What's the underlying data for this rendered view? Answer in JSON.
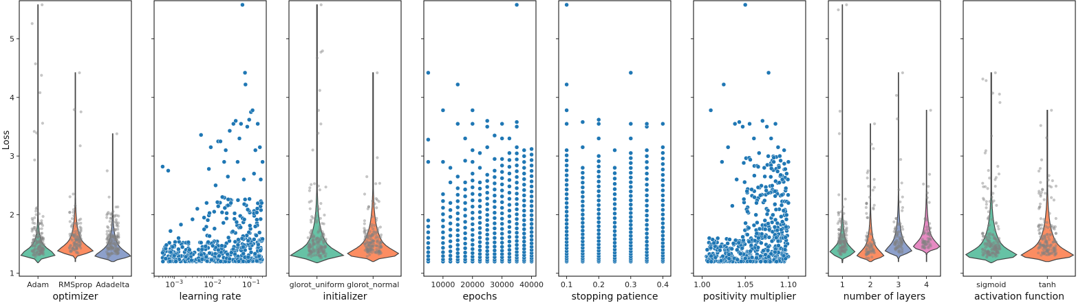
{
  "colors": {
    "scatter": "#1f77b4",
    "scatter_edge": "#ffffff",
    "strip": "#808080",
    "violin": [
      "#66c2a5",
      "#fc8d62",
      "#8da0cb",
      "#e78ac3"
    ],
    "axes": "#000000"
  },
  "chart_data": {
    "type": "scatter",
    "ylabel": "Loss",
    "ylim": [
      0.95,
      5.65
    ],
    "yticks": [
      1,
      2,
      3,
      4,
      5
    ],
    "ytick_labels": [
      "1",
      "2",
      "3",
      "4",
      "5"
    ],
    "panels": [
      {
        "kind": "violin",
        "xlabel": "optimizer",
        "categories": [
          "Adam",
          "RMSprop",
          "Adadelta"
        ],
        "tick_labels": [
          "Adam",
          "RMSprop",
          "Adadelta"
        ],
        "distributions": [
          {
            "category": "Adam",
            "min": 1.18,
            "max": 5.58,
            "mode": 1.32,
            "median": 1.4,
            "spread": 0.3,
            "n": 150
          },
          {
            "category": "RMSprop",
            "min": 1.2,
            "max": 4.42,
            "mode": 1.38,
            "median": 1.45,
            "spread": 0.4,
            "n": 110
          },
          {
            "category": "Adadelta",
            "min": 1.2,
            "max": 3.38,
            "mode": 1.3,
            "median": 1.45,
            "spread": 0.35,
            "n": 160
          }
        ]
      },
      {
        "kind": "scatter",
        "xlabel": "learning rate",
        "xscale": "log",
        "xlim": [
          0.0003,
          0.25
        ],
        "xticks": [
          0.001,
          0.01,
          0.1
        ],
        "xtick_labels": [
          "10−3",
          "10−2",
          "10−1"
        ],
        "points": [
          [
            0.0005,
            2.82
          ],
          [
            0.0007,
            2.75
          ],
          [
            0.0005,
            1.35
          ],
          [
            0.0006,
            1.25
          ],
          [
            0.0008,
            1.72
          ],
          [
            0.001,
            1.3
          ],
          [
            0.0013,
            1.6
          ],
          [
            0.0015,
            1.83
          ],
          [
            0.002,
            1.28
          ],
          [
            0.0025,
            1.4
          ],
          [
            0.003,
            1.92
          ],
          [
            0.004,
            2.1
          ],
          [
            0.005,
            3.36
          ],
          [
            0.006,
            1.95
          ],
          [
            0.007,
            2.2
          ],
          [
            0.008,
            2.78
          ],
          [
            0.009,
            3.15
          ],
          [
            0.011,
            2.05
          ],
          [
            0.012,
            2.5
          ],
          [
            0.014,
            3.25
          ],
          [
            0.016,
            3.25
          ],
          [
            0.018,
            2.3
          ],
          [
            0.02,
            2.9
          ],
          [
            0.022,
            3.1
          ],
          [
            0.025,
            2.65
          ],
          [
            0.028,
            3.43
          ],
          [
            0.03,
            2.2
          ],
          [
            0.035,
            3.55
          ],
          [
            0.04,
            3.6
          ],
          [
            0.045,
            2.9
          ],
          [
            0.05,
            3.3
          ],
          [
            0.055,
            3.55
          ],
          [
            0.06,
            5.58
          ],
          [
            0.065,
            2.6
          ],
          [
            0.07,
            4.42
          ],
          [
            0.072,
            4.22
          ],
          [
            0.08,
            3.5
          ],
          [
            0.09,
            3.62
          ],
          [
            0.1,
            3.75
          ],
          [
            0.11,
            3.78
          ],
          [
            0.12,
            2.7
          ],
          [
            0.13,
            3.1
          ],
          [
            0.15,
            3.55
          ],
          [
            0.17,
            3.15
          ],
          [
            0.18,
            2.6
          ],
          [
            0.19,
            2.2
          ],
          [
            0.2,
            2.9
          ]
        ],
        "dense_cloud": {
          "n": 320,
          "x_range": [
            0.0005,
            0.2
          ],
          "y_min": 1.2,
          "y_max": 1.55,
          "n_mid": 90,
          "mid_y_max": 2.3,
          "mid_x_range": [
            0.005,
            0.2
          ]
        }
      },
      {
        "kind": "violin",
        "xlabel": "initializer",
        "categories": [
          "glorot_uniform",
          "glorot_normal"
        ],
        "tick_labels": [
          "glorot_uniform",
          "glorot_normal"
        ],
        "distributions": [
          {
            "category": "glorot_uniform",
            "min": 1.18,
            "max": 5.58,
            "mode": 1.3,
            "median": 1.4,
            "spread": 0.5,
            "n": 170
          },
          {
            "category": "glorot_normal",
            "min": 1.2,
            "max": 4.42,
            "mode": 1.32,
            "median": 1.45,
            "spread": 0.5,
            "n": 150
          }
        ]
      },
      {
        "kind": "scatter",
        "xlabel": "epochs",
        "xscale": "linear",
        "xlim": [
          3500,
          41500
        ],
        "xticks": [
          10000,
          20000,
          30000,
          40000
        ],
        "xtick_labels": [
          "10000",
          "20000",
          "30000",
          "40000"
        ],
        "columns": [
          {
            "x": 5000,
            "min": 1.2,
            "max": 1.9,
            "n": 10,
            "extra": [
              2.9,
              3.28,
              4.42
            ]
          },
          {
            "x": 10000,
            "min": 1.2,
            "max": 2.35,
            "n": 14,
            "extra": [
              2.9,
              3.78
            ]
          },
          {
            "x": 12500,
            "min": 1.2,
            "max": 2.2,
            "n": 12,
            "extra": [
              2.55,
              2.8
            ]
          },
          {
            "x": 15000,
            "min": 1.2,
            "max": 2.45,
            "n": 16,
            "extra": [
              3.55,
              4.22,
              2.65
            ]
          },
          {
            "x": 17500,
            "min": 1.2,
            "max": 2.55,
            "n": 16,
            "extra": [
              2.92,
              3.3
            ]
          },
          {
            "x": 20000,
            "min": 1.2,
            "max": 2.7,
            "n": 18,
            "extra": [
              2.9,
              3.55,
              3.78,
              3.1
            ]
          },
          {
            "x": 22500,
            "min": 1.2,
            "max": 2.55,
            "n": 18,
            "extra": [
              2.8,
              3.05
            ]
          },
          {
            "x": 25000,
            "min": 1.2,
            "max": 2.68,
            "n": 20,
            "extra": [
              3.15,
              3.6,
              3.5
            ]
          },
          {
            "x": 27500,
            "min": 1.2,
            "max": 2.75,
            "n": 20,
            "extra": [
              2.95,
              3.35
            ]
          },
          {
            "x": 30000,
            "min": 1.2,
            "max": 2.95,
            "n": 22,
            "extra": [
              3.3,
              3.55
            ]
          },
          {
            "x": 32500,
            "min": 1.2,
            "max": 3.05,
            "n": 22,
            "extra": [
              3.3
            ]
          },
          {
            "x": 35000,
            "min": 1.2,
            "max": 3.15,
            "n": 26,
            "extra": [
              3.5,
              3.58,
              5.58
            ]
          },
          {
            "x": 37500,
            "min": 1.2,
            "max": 3.1,
            "n": 26,
            "extra": []
          },
          {
            "x": 40000,
            "min": 1.2,
            "max": 3.12,
            "n": 28,
            "extra": []
          }
        ]
      },
      {
        "kind": "scatter",
        "xlabel": "stopping patience",
        "xscale": "linear",
        "xlim": [
          0.075,
          0.425
        ],
        "xticks": [
          0.1,
          0.2,
          0.3,
          0.4
        ],
        "xtick_labels": [
          "0.1",
          "0.2",
          "0.3",
          "0.4"
        ],
        "columns": [
          {
            "x": 0.1,
            "min": 1.2,
            "max": 3.1,
            "n": 30,
            "extra": [
              3.55,
              3.78,
              4.22,
              5.58
            ]
          },
          {
            "x": 0.15,
            "min": 1.2,
            "max": 2.8,
            "n": 26,
            "extra": [
              3.15,
              3.58
            ]
          },
          {
            "x": 0.2,
            "min": 1.2,
            "max": 3.0,
            "n": 28,
            "extra": [
              3.3,
              3.55,
              3.62
            ]
          },
          {
            "x": 0.25,
            "min": 1.2,
            "max": 2.8,
            "n": 24,
            "extra": [
              3.1
            ]
          },
          {
            "x": 0.3,
            "min": 1.2,
            "max": 3.05,
            "n": 30,
            "extra": [
              3.3,
              3.55,
              4.42
            ]
          },
          {
            "x": 0.35,
            "min": 1.2,
            "max": 3.1,
            "n": 26,
            "extra": [
              3.5,
              3.55
            ]
          },
          {
            "x": 0.4,
            "min": 1.2,
            "max": 3.15,
            "n": 28,
            "extra": [
              3.55
            ]
          }
        ]
      },
      {
        "kind": "scatter",
        "xlabel": "positivity multiplier",
        "xscale": "linear",
        "xlim": [
          0.99,
          1.12
        ],
        "xticks": [
          1.0,
          1.05,
          1.1
        ],
        "xtick_labels": [
          "1.00",
          "1.05",
          "1.10"
        ],
        "points": [
          [
            1.01,
            3.78
          ],
          [
            1.023,
            2.9
          ],
          [
            1.025,
            4.22
          ],
          [
            1.03,
            3.15
          ],
          [
            1.035,
            2.15
          ],
          [
            1.038,
            3.55
          ],
          [
            1.04,
            2.6
          ],
          [
            1.043,
            3.58
          ],
          [
            1.047,
            3.5
          ],
          [
            1.05,
            5.58
          ],
          [
            1.052,
            2.4
          ],
          [
            1.055,
            3.55
          ],
          [
            1.06,
            3.3
          ],
          [
            1.063,
            2.2
          ],
          [
            1.066,
            3.05
          ],
          [
            1.07,
            3.6
          ],
          [
            1.072,
            2.8
          ],
          [
            1.075,
            3.5
          ],
          [
            1.077,
            4.42
          ],
          [
            1.08,
            3.3
          ],
          [
            1.083,
            2.9
          ],
          [
            1.085,
            3.55
          ],
          [
            1.088,
            3.15
          ],
          [
            1.09,
            3.0
          ],
          [
            1.093,
            2.6
          ],
          [
            1.095,
            3.1
          ],
          [
            1.097,
            2.45
          ],
          [
            1.1,
            2.9
          ],
          [
            1.1,
            2.2
          ],
          [
            1.098,
            2.7
          ]
        ],
        "dense_cloud": {
          "n": 330,
          "x_range": [
            1.005,
            1.1
          ],
          "y_min": 1.2,
          "y_max": 1.6,
          "n_mid": 180,
          "mid_y_max": 3.0,
          "mid_x_range": [
            1.045,
            1.1
          ]
        }
      },
      {
        "kind": "violin",
        "xlabel": "number of layers",
        "categories": [
          "1",
          "2",
          "3",
          "4"
        ],
        "tick_labels": [
          "1",
          "2",
          "3",
          "4"
        ],
        "distributions": [
          {
            "category": "1",
            "min": 1.18,
            "max": 5.58,
            "mode": 1.35,
            "median": 1.45,
            "spread": 0.35,
            "n": 120
          },
          {
            "category": "2",
            "min": 1.2,
            "max": 3.55,
            "mode": 1.3,
            "median": 1.35,
            "spread": 0.4,
            "n": 80
          },
          {
            "category": "3",
            "min": 1.2,
            "max": 4.42,
            "mode": 1.38,
            "median": 1.45,
            "spread": 0.45,
            "n": 80
          },
          {
            "category": "4",
            "min": 1.2,
            "max": 3.78,
            "mode": 1.45,
            "median": 1.5,
            "spread": 0.45,
            "n": 60
          }
        ]
      },
      {
        "kind": "violin",
        "xlabel": "activation function",
        "categories": [
          "sigmoid",
          "tanh"
        ],
        "tick_labels": [
          "sigmoid",
          "tanh"
        ],
        "distributions": [
          {
            "category": "sigmoid",
            "min": 1.18,
            "max": 4.42,
            "mode": 1.3,
            "median": 1.4,
            "spread": 0.5,
            "n": 170
          },
          {
            "category": "tanh",
            "min": 1.2,
            "max": 3.78,
            "mode": 1.3,
            "median": 1.45,
            "spread": 0.5,
            "n": 150
          }
        ]
      }
    ]
  }
}
